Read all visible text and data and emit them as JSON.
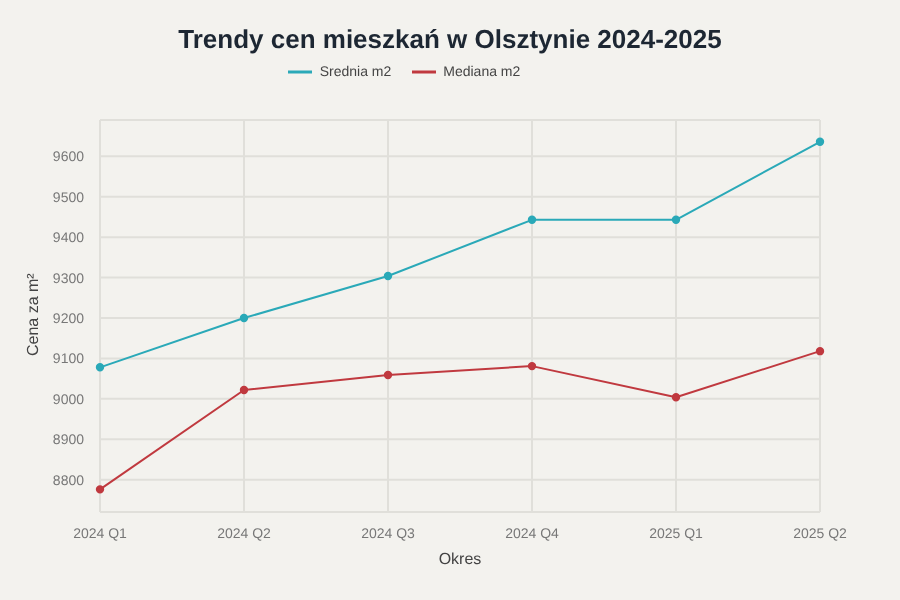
{
  "chart_data": {
    "type": "line",
    "title": "Trendy cen mieszkań w Olsztynie 2024-2025",
    "xlabel": "Okres",
    "ylabel": "Cena za m²",
    "categories": [
      "2024 Q1",
      "2024 Q2",
      "2024 Q3",
      "2024 Q4",
      "2025 Q1",
      "2025 Q2"
    ],
    "series": [
      {
        "name": "Srednia m2",
        "color": "#2aa9b8",
        "values": [
          9078,
          9200,
          9304,
          9443,
          9443,
          9636
        ]
      },
      {
        "name": "Mediana m2",
        "color": "#c0393f",
        "values": [
          8776,
          9022,
          9059,
          9081,
          9004,
          9118
        ]
      }
    ],
    "ylim": [
      8720,
      9690
    ],
    "yticks": [
      8800,
      8900,
      9000,
      9100,
      9200,
      9300,
      9400,
      9500,
      9600
    ],
    "grid": true,
    "legend": "top",
    "marker": "circle",
    "line_style": "solid"
  }
}
